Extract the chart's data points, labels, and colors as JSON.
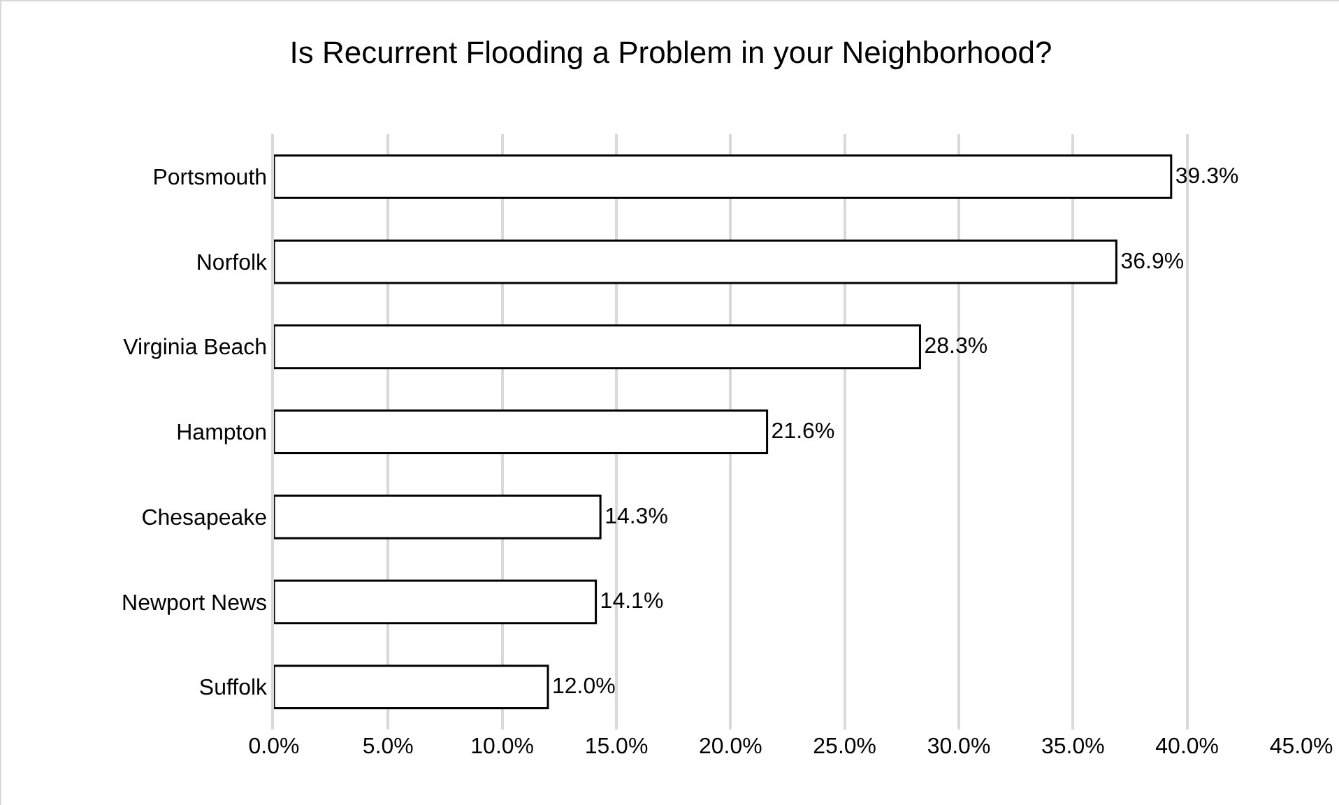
{
  "chart_data": {
    "type": "bar",
    "orientation": "horizontal",
    "title": "Is Recurrent Flooding a Problem in your Neighborhood?",
    "categories": [
      "Portsmouth",
      "Norfolk",
      "Virginia Beach",
      "Hampton",
      "Chesapeake",
      "Newport News",
      "Suffolk"
    ],
    "values": [
      39.3,
      36.9,
      28.3,
      21.6,
      14.3,
      14.1,
      12.0
    ],
    "value_labels": [
      "39.3%",
      "36.9%",
      "28.3%",
      "21.6%",
      "14.3%",
      "14.1%",
      "12.0%"
    ],
    "color": "#ffffff",
    "xlim": [
      0,
      45
    ],
    "xticks": [
      {
        "value": 0,
        "label": "0.0%"
      },
      {
        "value": 5,
        "label": "5.0%"
      },
      {
        "value": 10,
        "label": "10.0%"
      },
      {
        "value": 15,
        "label": "15.0%"
      },
      {
        "value": 20,
        "label": "20.0%"
      },
      {
        "value": 25,
        "label": "25.0%"
      },
      {
        "value": 30,
        "label": "30.0%"
      },
      {
        "value": 35,
        "label": "35.0%"
      },
      {
        "value": 40,
        "label": "40.0%"
      },
      {
        "value": 45,
        "label": "45.0%"
      }
    ],
    "grid": "x"
  }
}
